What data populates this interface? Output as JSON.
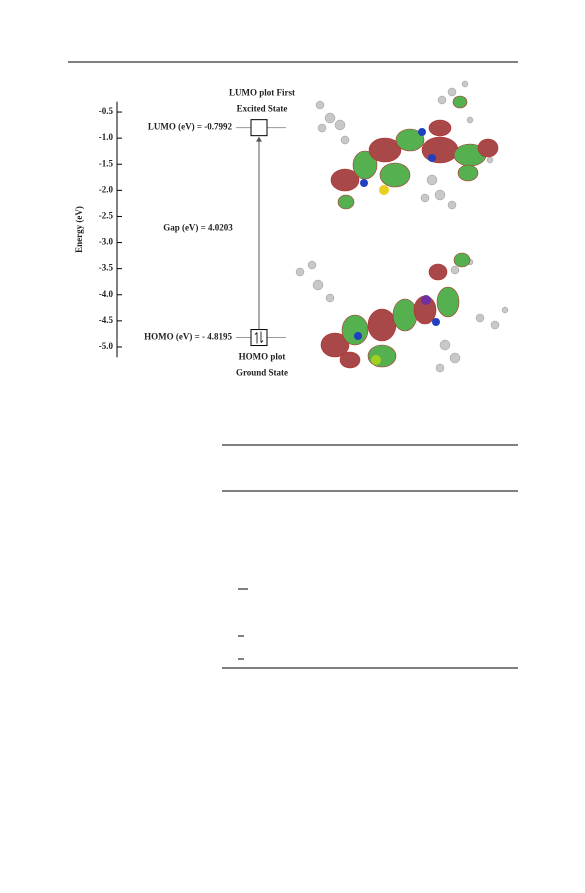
{
  "figure": {
    "ylabel": "Energy (eV)",
    "ylim": [
      -5.2,
      -0.3
    ],
    "yticks": [
      -0.5,
      {
        "value": -1,
        "label": "-1.0"
      },
      -1.5,
      {
        "value": -2,
        "label": "-2.0"
      },
      -2.5,
      {
        "value": -3,
        "label": "-3.0"
      },
      -3.5,
      {
        "value": -4,
        "label": "-4.0"
      },
      -4.5,
      {
        "value": -5,
        "label": "-5.0"
      }
    ],
    "lumo": {
      "energy": -0.7992,
      "label": "LUMO (eV) = -0.7992",
      "caption": [
        "LUMO plot First",
        "Excited State"
      ]
    },
    "homo": {
      "energy": -4.8195,
      "label": "HOMO (eV) = - 4.8195",
      "caption": [
        "HOMO plot",
        "Ground State"
      ]
    },
    "gap": {
      "label": "Gap (eV) = 4.0203"
    }
  }
}
